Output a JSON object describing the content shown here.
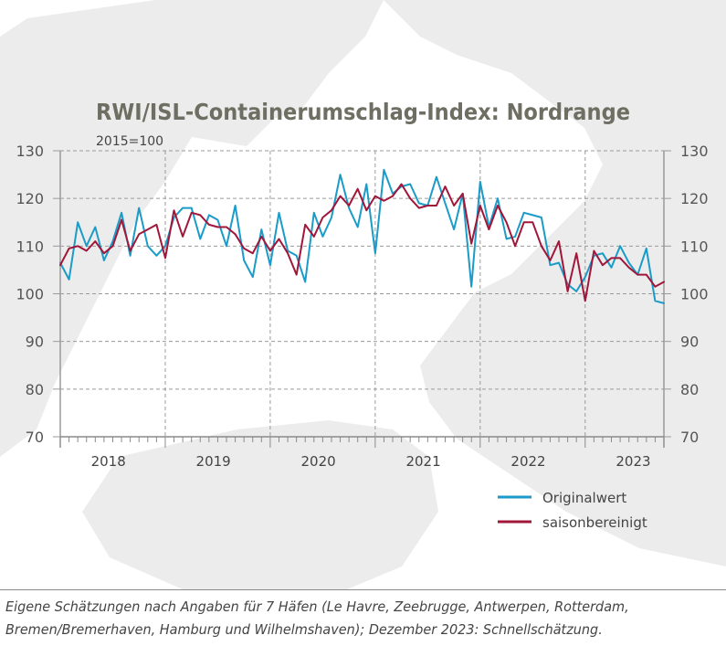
{
  "title": "RWI/ISL-Containerumschlag-Index: Nordrange",
  "subtitle": "2015=100",
  "footnote_line1": "Eigene Schätzungen nach Angaben für 7 Häfen (Le Havre, Zeebrugge, Antwerpen, Rotterdam,",
  "footnote_line2": "Bremen/Bremerhaven, Hamburg und Wilhelmshaven); Dezember 2023: Schnellschätzung.",
  "colors": {
    "original": "#1a9bc8",
    "adjusted": "#a0173a",
    "title": "#6e6e63",
    "grid": "#9a9a9a",
    "map": "#ececec"
  },
  "chart_data": {
    "type": "line",
    "ylim": [
      70,
      130
    ],
    "yticks": [
      70,
      80,
      90,
      100,
      110,
      120,
      130
    ],
    "year_labels": [
      "2018",
      "2019",
      "2020",
      "2021",
      "2022",
      "2023"
    ],
    "x_start": "2018-01",
    "x_end": "2023-12",
    "grid": true,
    "legend_position": "bottom-right",
    "series": [
      {
        "name": "Originalwert",
        "color": "#1a9bc8",
        "values": [
          106.5,
          103,
          115,
          110,
          114,
          107,
          111,
          117,
          108,
          118,
          110,
          108,
          110,
          116,
          118,
          118,
          111.5,
          116.5,
          115.5,
          110,
          118.5,
          107,
          103.5,
          113.5,
          106,
          117,
          109,
          108,
          102.5,
          117,
          112,
          116,
          125,
          118,
          114,
          123,
          108.5,
          126,
          121,
          122.5,
          123,
          119,
          118.5,
          124.5,
          119,
          113.5,
          121,
          101.5,
          123.5,
          114,
          120,
          111.5,
          112,
          117,
          116.5,
          116,
          106,
          106.5,
          102,
          100.5,
          103.5,
          108,
          108.5,
          105.5,
          110,
          106.5,
          104,
          109.5,
          98.5,
          98
        ]
      },
      {
        "name": "saisonbereinigt",
        "color": "#a0173a",
        "values": [
          106,
          109.5,
          110,
          109,
          111,
          108.5,
          110,
          115.5,
          109,
          112.5,
          113.5,
          114.5,
          107.5,
          117.5,
          112,
          117,
          116.5,
          114.5,
          114,
          114,
          112.5,
          109.5,
          108.5,
          112,
          109,
          111.5,
          108.5,
          104,
          114.5,
          112,
          116,
          117.5,
          120.5,
          118.5,
          122,
          117.5,
          120.5,
          119.5,
          120.5,
          123,
          120,
          118,
          118.5,
          118.5,
          122.5,
          118.5,
          121,
          110.5,
          118.5,
          113.5,
          118.5,
          115,
          110,
          115,
          115,
          110,
          107,
          111,
          100.5,
          108.5,
          98.5,
          109,
          106,
          107.5,
          107.5,
          105.5,
          104,
          104,
          101.5,
          102.5
        ]
      }
    ]
  }
}
